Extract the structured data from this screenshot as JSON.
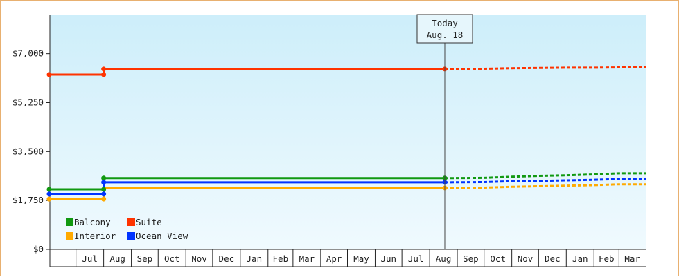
{
  "chart_data": {
    "type": "line",
    "title": "",
    "xlabel": "",
    "ylabel": "",
    "ylim": [
      0,
      8400
    ],
    "y_ticks": [
      {
        "value": 0,
        "label": "$0"
      },
      {
        "value": 1750,
        "label": "$1,750"
      },
      {
        "value": 3500,
        "label": "$3,500"
      },
      {
        "value": 5250,
        "label": "$5,250"
      },
      {
        "value": 7000,
        "label": "$7,000"
      }
    ],
    "x_start": "2024-06-01",
    "x_end": "2026-03-31",
    "month_ticks": [
      {
        "date": "2024-07-01",
        "label": "Jul"
      },
      {
        "date": "2024-08-01",
        "label": "Aug"
      },
      {
        "date": "2024-09-01",
        "label": "Sep"
      },
      {
        "date": "2024-10-01",
        "label": "Oct"
      },
      {
        "date": "2024-11-01",
        "label": "Nov"
      },
      {
        "date": "2024-12-01",
        "label": "Dec"
      },
      {
        "date": "2025-01-01",
        "label": "Jan"
      },
      {
        "date": "2025-02-01",
        "label": "Feb"
      },
      {
        "date": "2025-03-01",
        "label": "Mar"
      },
      {
        "date": "2025-04-01",
        "label": "Apr"
      },
      {
        "date": "2025-05-01",
        "label": "May"
      },
      {
        "date": "2025-06-01",
        "label": "Jun"
      },
      {
        "date": "2025-07-01",
        "label": "Jul"
      },
      {
        "date": "2025-08-01",
        "label": "Aug"
      },
      {
        "date": "2025-09-01",
        "label": "Sep"
      },
      {
        "date": "2025-10-01",
        "label": "Oct"
      },
      {
        "date": "2025-11-01",
        "label": "Nov"
      },
      {
        "date": "2025-12-01",
        "label": "Dec"
      },
      {
        "date": "2026-01-01",
        "label": "Jan"
      },
      {
        "date": "2026-02-01",
        "label": "Feb"
      },
      {
        "date": "2026-03-01",
        "label": "Mar"
      }
    ],
    "today": {
      "date": "2025-08-18",
      "label_line1": "Today",
      "label_line2": "Aug. 18"
    },
    "series": [
      {
        "name": "Balcony",
        "color": "#119911",
        "history": [
          [
            "2024-06-01",
            2150
          ],
          [
            "2024-08-01",
            2150
          ],
          [
            "2024-08-01",
            2550
          ],
          [
            "2025-08-18",
            2550
          ]
        ],
        "forecast": [
          [
            "2025-08-18",
            2550
          ],
          [
            "2025-10-01",
            2560
          ],
          [
            "2025-11-01",
            2600
          ],
          [
            "2025-12-01",
            2630
          ],
          [
            "2026-01-01",
            2650
          ],
          [
            "2026-02-01",
            2680
          ],
          [
            "2026-03-01",
            2720
          ],
          [
            "2026-03-31",
            2720
          ]
        ]
      },
      {
        "name": "Suite",
        "color": "#ff3300",
        "history": [
          [
            "2024-06-01",
            6250
          ],
          [
            "2024-08-01",
            6250
          ],
          [
            "2024-08-01",
            6450
          ],
          [
            "2025-08-18",
            6450
          ]
        ],
        "forecast": [
          [
            "2025-08-18",
            6450
          ],
          [
            "2025-10-01",
            6460
          ],
          [
            "2025-11-01",
            6480
          ],
          [
            "2025-12-01",
            6490
          ],
          [
            "2026-01-01",
            6500
          ],
          [
            "2026-02-01",
            6500
          ],
          [
            "2026-03-01",
            6510
          ],
          [
            "2026-03-31",
            6510
          ]
        ]
      },
      {
        "name": "Interior",
        "color": "#ffaa00",
        "history": [
          [
            "2024-06-01",
            1800
          ],
          [
            "2024-08-01",
            1800
          ],
          [
            "2024-08-01",
            2200
          ],
          [
            "2025-08-18",
            2200
          ]
        ],
        "forecast": [
          [
            "2025-08-18",
            2200
          ],
          [
            "2025-10-01",
            2210
          ],
          [
            "2025-11-01",
            2240
          ],
          [
            "2025-12-01",
            2260
          ],
          [
            "2026-01-01",
            2280
          ],
          [
            "2026-02-01",
            2300
          ],
          [
            "2026-03-01",
            2330
          ],
          [
            "2026-03-31",
            2330
          ]
        ]
      },
      {
        "name": "Ocean View",
        "color": "#0033ff",
        "history": [
          [
            "2024-06-01",
            1980
          ],
          [
            "2024-08-01",
            1980
          ],
          [
            "2024-08-01",
            2400
          ],
          [
            "2025-08-18",
            2400
          ]
        ],
        "forecast": [
          [
            "2025-08-18",
            2400
          ],
          [
            "2025-10-01",
            2410
          ],
          [
            "2025-11-01",
            2440
          ],
          [
            "2025-12-01",
            2450
          ],
          [
            "2026-01-01",
            2470
          ],
          [
            "2026-02-01",
            2490
          ],
          [
            "2026-03-01",
            2520
          ],
          [
            "2026-03-31",
            2520
          ]
        ]
      }
    ],
    "markers": [
      {
        "series": "Balcony",
        "points": [
          [
            "2024-06-01",
            2150
          ],
          [
            "2024-08-01",
            2150
          ],
          [
            "2024-08-01",
            2550
          ],
          [
            "2025-08-18",
            2550
          ]
        ]
      },
      {
        "series": "Suite",
        "points": [
          [
            "2024-06-01",
            6250
          ],
          [
            "2024-08-01",
            6250
          ],
          [
            "2024-08-01",
            6450
          ],
          [
            "2025-08-18",
            6450
          ]
        ]
      },
      {
        "series": "Interior",
        "points": [
          [
            "2024-06-01",
            1800
          ],
          [
            "2024-08-01",
            1800
          ],
          [
            "2025-08-18",
            2200
          ]
        ]
      },
      {
        "series": "Ocean View",
        "points": [
          [
            "2024-06-01",
            1980
          ],
          [
            "2024-08-01",
            1980
          ],
          [
            "2024-08-01",
            2400
          ],
          [
            "2025-08-18",
            2400
          ]
        ]
      }
    ],
    "legend": {
      "placement": "bottom-left",
      "rows": [
        [
          "Balcony",
          "Suite"
        ],
        [
          "Interior",
          "Ocean View"
        ]
      ]
    },
    "grid": false,
    "background": {
      "top_color": "#cdeefa",
      "bottom_color": "#f0fafe"
    }
  }
}
